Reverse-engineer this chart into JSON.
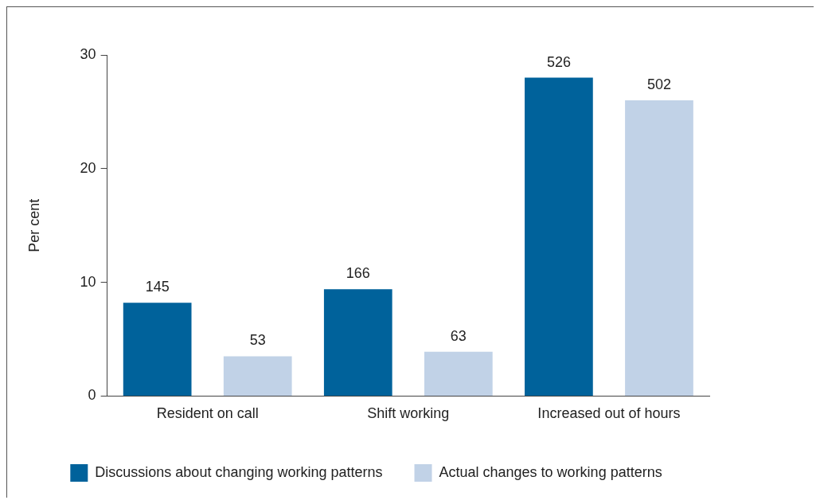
{
  "chart_data": {
    "type": "bar",
    "ylabel": "Per cent",
    "categories": [
      "Resident on call",
      "Shift working",
      "Increased out of hours"
    ],
    "series": [
      {
        "name": "Discussions about changing working patterns",
        "color": "#00629b",
        "values": [
          8.2,
          9.4,
          28.0
        ]
      },
      {
        "name": "Actual changes to working patterns",
        "color": "#c1d2e7",
        "values": [
          3.5,
          3.9,
          26.0
        ]
      }
    ],
    "annotations": [
      "145",
      "53",
      "166",
      "63",
      "526",
      "502"
    ],
    "ylim": [
      0,
      30
    ],
    "yticks": [
      0,
      10,
      20,
      30
    ],
    "grid": false,
    "legend": "bottom"
  }
}
